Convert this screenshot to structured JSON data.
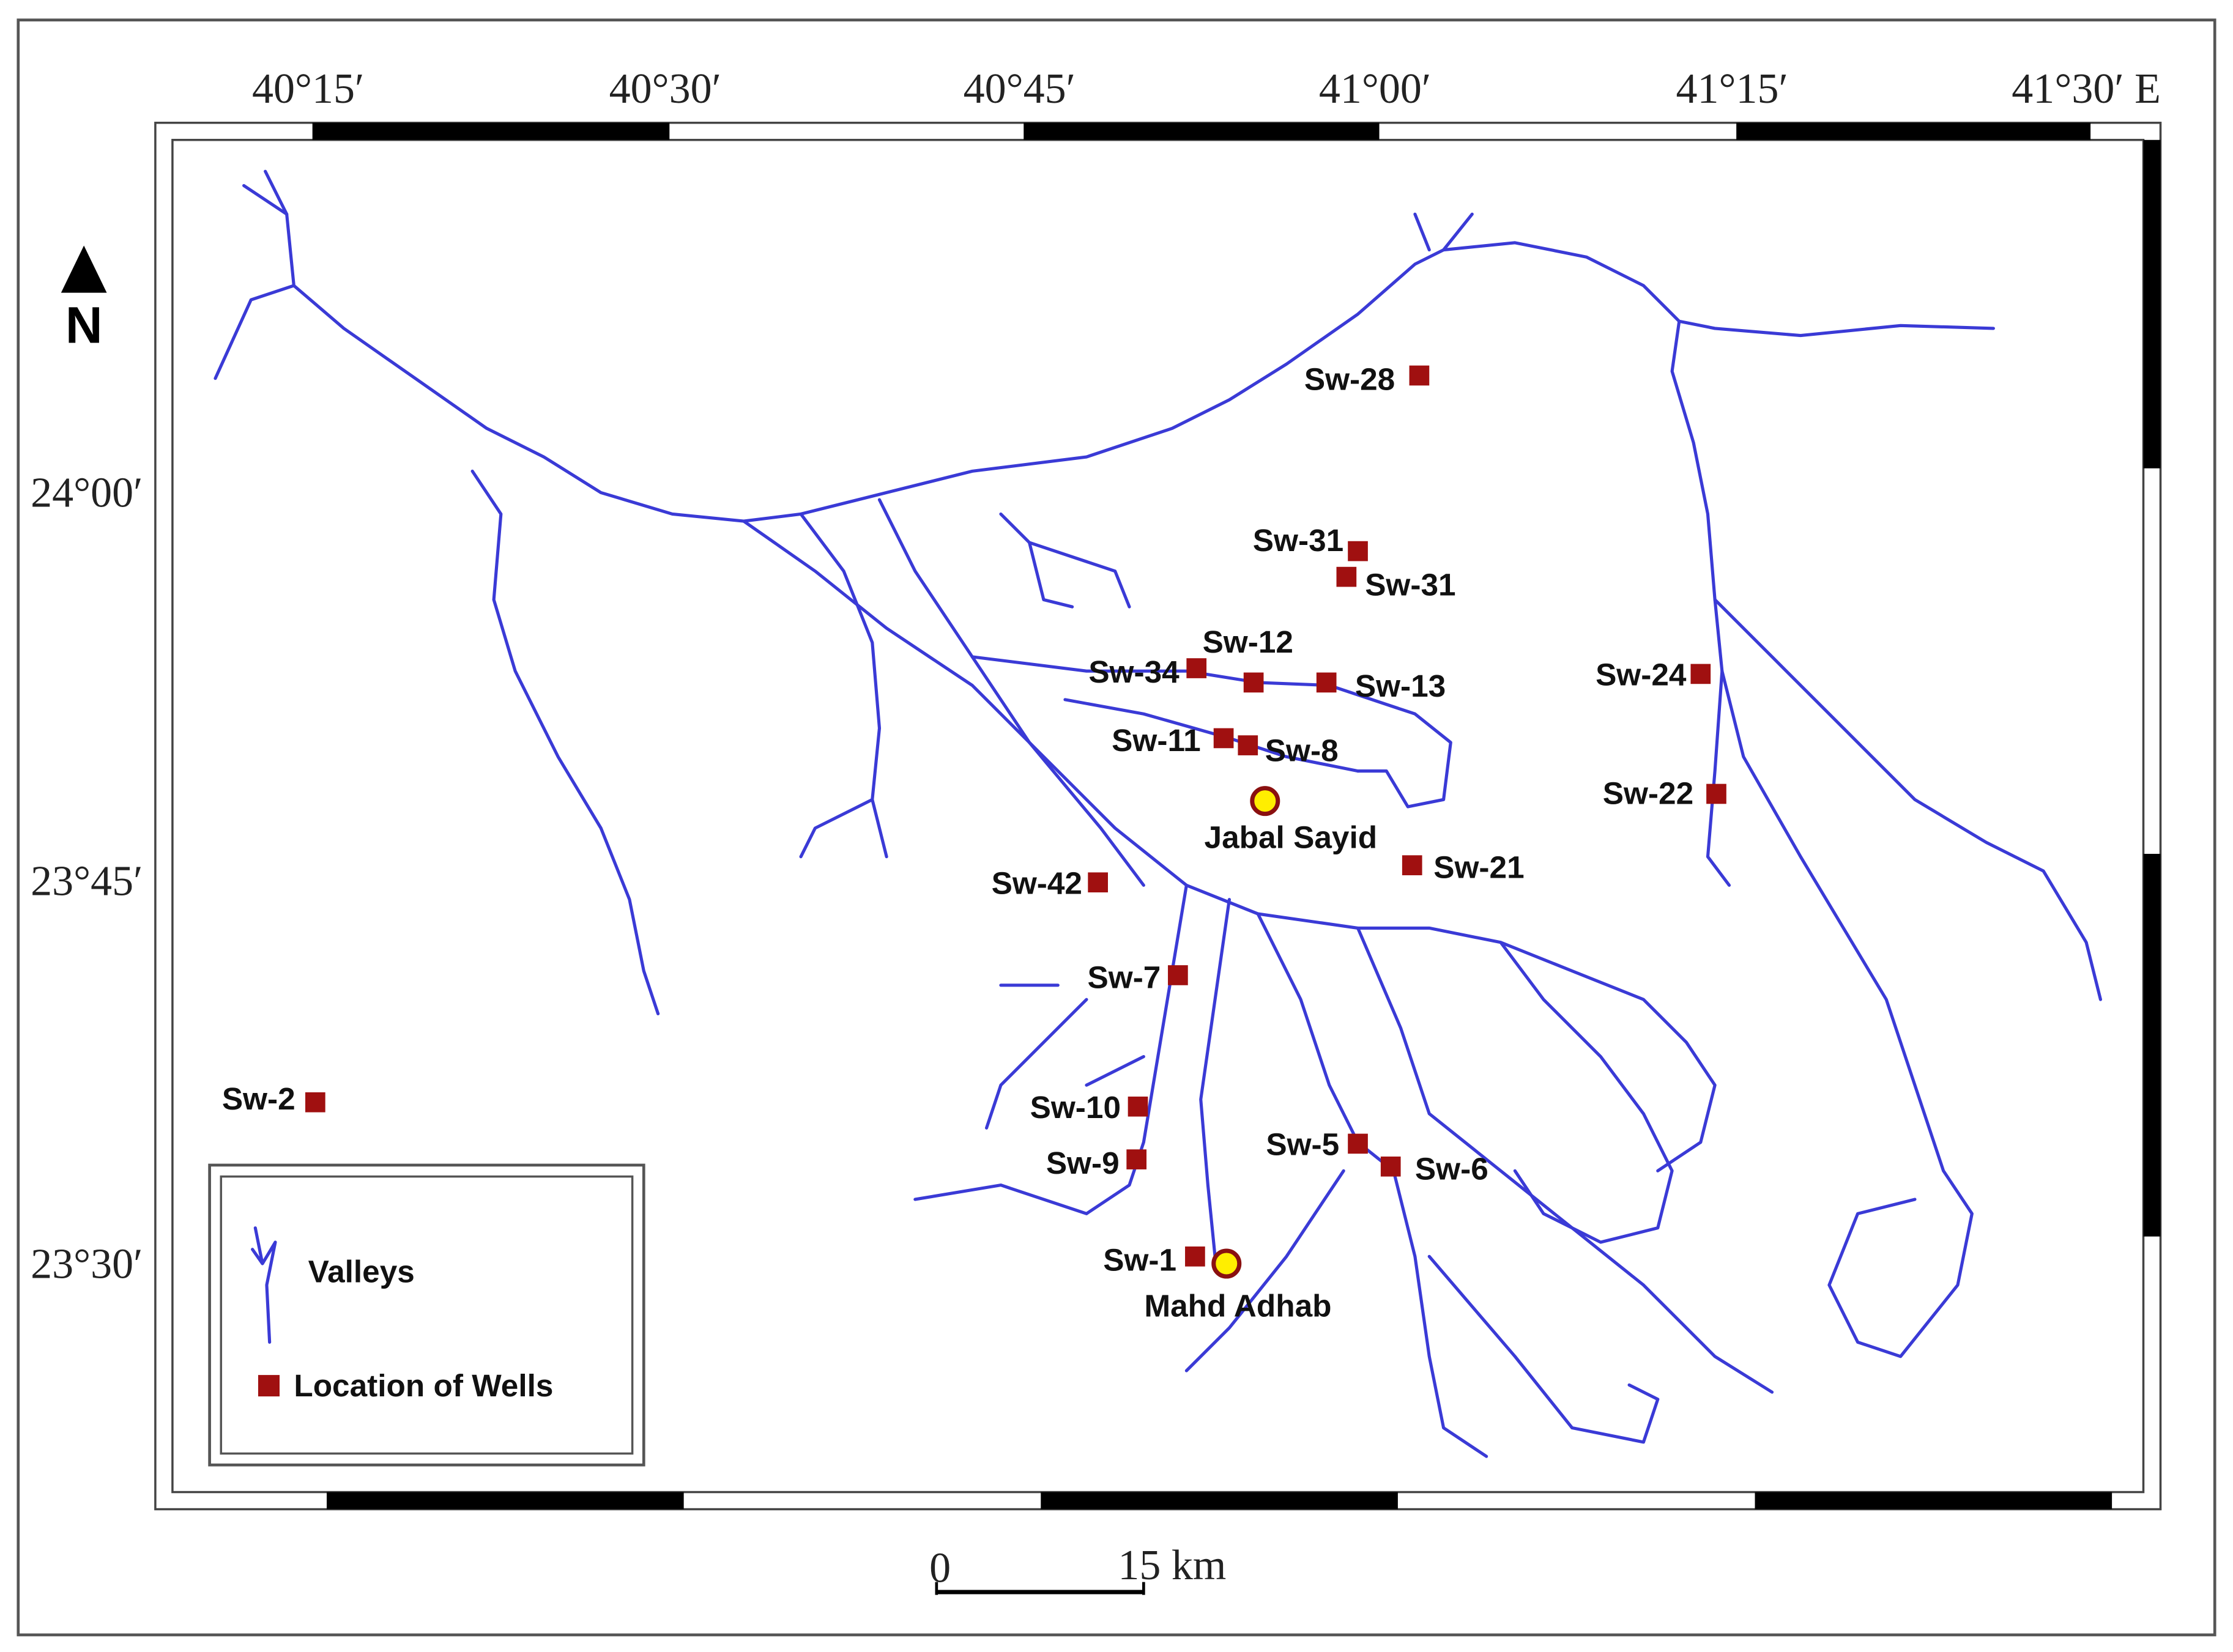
{
  "longitude_labels": [
    "40°15′",
    "40°30′",
    "40°45′",
    "41°00′",
    "41°15′",
    "41°30′ E"
  ],
  "latitude_labels": [
    "24°00′",
    "23°45′",
    "23°30′"
  ],
  "north": "N",
  "wells": [
    "Sw-28",
    "Sw-31",
    "Sw-31",
    "Sw-12",
    "Sw-34",
    "Sw-13",
    "Sw-24",
    "Sw-11",
    "Sw-8",
    "Sw-22",
    "Sw-21",
    "Sw-42",
    "Sw-7",
    "Sw-2",
    "Sw-10",
    "Sw-9",
    "Sw-5",
    "Sw-6",
    "Sw-1"
  ],
  "places": [
    "Jabal Sayid",
    "Mahd Adhab"
  ],
  "legend": {
    "valleys": "Valleys",
    "wells": "Location of Wells"
  },
  "scale_bar": {
    "start": "0",
    "end": "15 km"
  }
}
